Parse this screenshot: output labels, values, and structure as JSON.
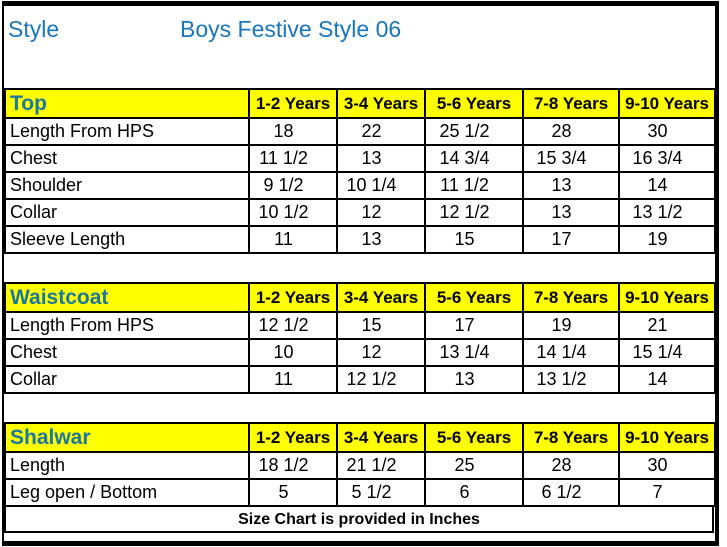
{
  "title": {
    "label": "Style",
    "value": "Boys Festive Style 06"
  },
  "colors": {
    "header_bg": "#ffff00",
    "title_blue": "#1776be",
    "section_blue": "#1a78a0",
    "text": "#000000",
    "line": "#000000"
  },
  "columns": [
    "1-2 Years",
    "3-4 Years",
    "5-6 Years",
    "7-8 Years",
    "9-10 Years"
  ],
  "sections": [
    {
      "name": "Top",
      "rows": [
        {
          "label": "Length From HPS",
          "values": [
            "18",
            "22",
            "25 1/2",
            "28",
            "30"
          ]
        },
        {
          "label": "Chest",
          "values": [
            "11 1/2",
            "13",
            "14 3/4",
            "15 3/4",
            "16 3/4"
          ]
        },
        {
          "label": "Shoulder",
          "values": [
            "9 1/2",
            "10 1/4",
            "11 1/2",
            "13",
            "14"
          ]
        },
        {
          "label": "Collar",
          "values": [
            "10 1/2",
            "12",
            "12 1/2",
            "13",
            "13 1/2"
          ]
        },
        {
          "label": "Sleeve Length",
          "values": [
            "11",
            "13",
            "15",
            "17",
            "19"
          ]
        }
      ]
    },
    {
      "name": "Waistcoat",
      "rows": [
        {
          "label": "Length From HPS",
          "values": [
            "12 1/2",
            "15",
            "17",
            "19",
            "21"
          ]
        },
        {
          "label": "Chest",
          "values": [
            "10",
            "12",
            "13 1/4",
            "14 1/4",
            "15 1/4"
          ]
        },
        {
          "label": "Collar",
          "values": [
            "11",
            "12 1/2",
            "13",
            "13 1/2",
            "14"
          ]
        }
      ]
    },
    {
      "name": "Shalwar",
      "rows": [
        {
          "label": "Length",
          "values": [
            "18 1/2",
            "21 1/2",
            "25",
            "28",
            "30"
          ]
        },
        {
          "label": "Leg open / Bottom",
          "values": [
            "5",
            "5 1/2",
            "6",
            "6 1/2",
            "7"
          ]
        }
      ]
    }
  ],
  "footer": {
    "note": "Size Chart is provided in Inches"
  }
}
